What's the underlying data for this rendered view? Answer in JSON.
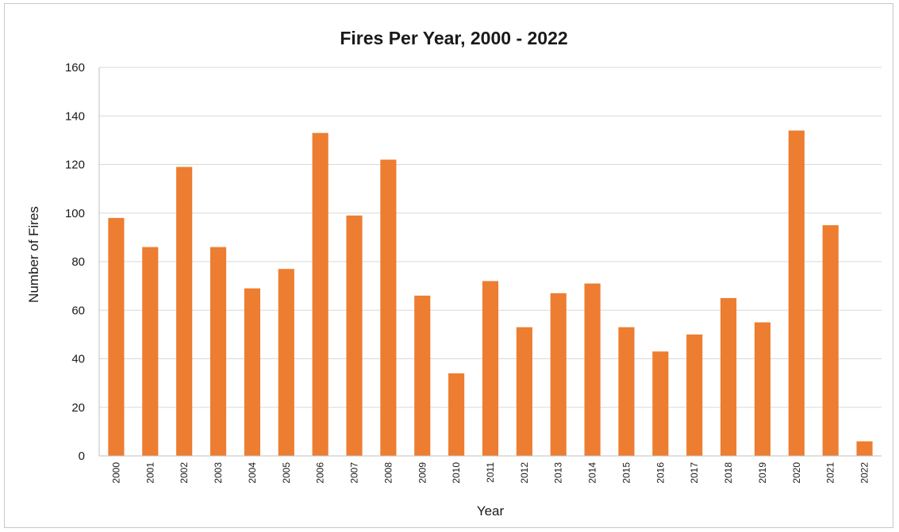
{
  "chart_data": {
    "type": "bar",
    "title": "Fires Per Year, 2000 - 2022",
    "xlabel": "Year",
    "ylabel": "Number of Fires",
    "ylim": [
      0,
      160
    ],
    "yticks": [
      "0",
      "20",
      "40",
      "60",
      "80",
      "100",
      "120",
      "140",
      "160"
    ],
    "grid": true,
    "legend": "none",
    "bar_color": "#ED7D31",
    "categories": [
      "2000",
      "2001",
      "2002",
      "2003",
      "2004",
      "2005",
      "2006",
      "2007",
      "2008",
      "2009",
      "2010",
      "2011",
      "2012",
      "2013",
      "2014",
      "2015",
      "2016",
      "2017",
      "2018",
      "2019",
      "2020",
      "2021",
      "2022"
    ],
    "values": [
      98,
      86,
      119,
      86,
      69,
      77,
      133,
      99,
      122,
      66,
      34,
      72,
      53,
      67,
      71,
      53,
      43,
      50,
      65,
      55,
      134,
      95,
      6
    ]
  }
}
